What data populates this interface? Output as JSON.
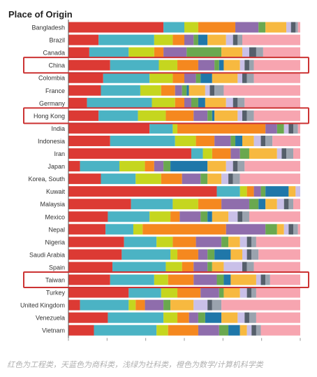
{
  "caption": "红色为工程类，天蓝色为商科类，浅绿为社科类，橙色为数学/计算机科学类",
  "colors": {
    "palette": [
      "#dc3a34",
      "#4bb3c4",
      "#c5d61f",
      "#f5881f",
      "#8f6dac",
      "#6aa84f",
      "#1f77a9",
      "#f7b940",
      "#c9c0e8",
      "#555f6b",
      "#9aa3ae",
      "#f7a5b0"
    ],
    "highlight": "#cc3333",
    "label": "#333333",
    "axis": "#555555"
  },
  "chart_data": {
    "type": "bar",
    "orientation": "horizontal",
    "stacked": true,
    "normalized": true,
    "title": "Place of Origin",
    "xlabel": "",
    "ylabel": "",
    "xlim": [
      0,
      1
    ],
    "grid": false,
    "legend": "none",
    "highlighted": [
      "China",
      "Hong Kong",
      "Taiwan"
    ],
    "categories": [
      "Bangladesh",
      "Brazil",
      "Canada",
      "China",
      "Colombia",
      "France",
      "Germany",
      "Hong Kong",
      "India",
      "Indonesia",
      "Iran",
      "Japan",
      "Korea, South",
      "Kuwait",
      "Malaysia",
      "Mexico",
      "Nepal",
      "Nigeria",
      "Saudi Arabia",
      "Spain",
      "Taiwan",
      "Turkey",
      "United Kingdom",
      "Venezuela",
      "Vietnam"
    ],
    "series": [
      {
        "values": [
          0.41,
          0.13,
          0.09,
          0.18,
          0.15,
          0.14,
          0.08,
          0.13,
          0.35,
          0.18,
          0.53,
          0.05,
          0.14,
          0.64,
          0.27,
          0.17,
          0.16,
          0.24,
          0.23,
          0.19,
          0.18,
          0.26,
          0.05,
          0.17,
          0.11
        ]
      },
      {
        "values": [
          0.09,
          0.24,
          0.17,
          0.21,
          0.2,
          0.17,
          0.28,
          0.17,
          0.1,
          0.28,
          0.05,
          0.17,
          0.15,
          0.1,
          0.18,
          0.18,
          0.12,
          0.14,
          0.21,
          0.23,
          0.19,
          0.14,
          0.21,
          0.24,
          0.27
        ]
      },
      {
        "values": [
          0.06,
          0.08,
          0.11,
          0.08,
          0.1,
          0.09,
          0.1,
          0.12,
          0.02,
          0.09,
          0.04,
          0.11,
          0.11,
          0.03,
          0.11,
          0.09,
          0.04,
          0.07,
          0.03,
          0.07,
          0.06,
          0.07,
          0.03,
          0.06,
          0.05
        ]
      },
      {
        "values": [
          0.16,
          0.05,
          0.04,
          0.09,
          0.05,
          0.06,
          0.04,
          0.12,
          0.38,
          0.08,
          0.08,
          0.04,
          0.09,
          0.03,
          0.1,
          0.04,
          0.36,
          0.1,
          0.09,
          0.05,
          0.11,
          0.1,
          0.04,
          0.05,
          0.13
        ]
      },
      {
        "values": [
          0.1,
          0.04,
          0.1,
          0.07,
          0.05,
          0.03,
          0.03,
          0.06,
          0.05,
          0.07,
          0.04,
          0.04,
          0.08,
          0.03,
          0.12,
          0.09,
          0.17,
          0.11,
          0.04,
          0.06,
          0.1,
          0.08,
          0.08,
          0.04,
          0.09
        ]
      },
      {
        "values": [
          0.03,
          0.02,
          0.15,
          0.02,
          0.02,
          0.02,
          0.03,
          0.02,
          0.03,
          0.02,
          0.04,
          0.03,
          0.03,
          0.02,
          0.04,
          0.03,
          0.05,
          0.03,
          0.03,
          0.02,
          0.03,
          0.02,
          0.03,
          0.03,
          0.04
        ]
      },
      {
        "values": [
          0.0,
          0.04,
          0.0,
          0.02,
          0.05,
          0.01,
          0.03,
          0.01,
          0.0,
          0.03,
          0.0,
          0.16,
          0.0,
          0.1,
          0.03,
          0.02,
          0.0,
          0.0,
          0.07,
          0.0,
          0.03,
          0.0,
          0.0,
          0.07,
          0.05
        ]
      },
      {
        "values": [
          0.09,
          0.08,
          0.09,
          0.07,
          0.11,
          0.07,
          0.09,
          0.1,
          0.0,
          0.05,
          0.12,
          0.08,
          0.06,
          0.03,
          0.05,
          0.07,
          0.03,
          0.05,
          0.05,
          0.05,
          0.11,
          0.07,
          0.1,
          0.07,
          0.03
        ]
      },
      {
        "values": [
          0.02,
          0.03,
          0.03,
          0.02,
          0.02,
          0.02,
          0.03,
          0.02,
          0.02,
          0.03,
          0.02,
          0.03,
          0.03,
          0.02,
          0.03,
          0.04,
          0.02,
          0.03,
          0.02,
          0.08,
          0.02,
          0.03,
          0.06,
          0.03,
          0.02
        ]
      },
      {
        "values": [
          0.02,
          0.02,
          0.03,
          0.02,
          0.02,
          0.02,
          0.02,
          0.02,
          0.02,
          0.02,
          0.02,
          0.02,
          0.02,
          0.02,
          0.02,
          0.02,
          0.02,
          0.02,
          0.02,
          0.02,
          0.02,
          0.02,
          0.02,
          0.02,
          0.02
        ]
      },
      {
        "values": [
          0.01,
          0.02,
          0.03,
          0.02,
          0.03,
          0.04,
          0.03,
          0.03,
          0.02,
          0.03,
          0.03,
          0.03,
          0.03,
          0.02,
          0.02,
          0.03,
          0.02,
          0.02,
          0.03,
          0.03,
          0.02,
          0.02,
          0.04,
          0.03,
          0.02
        ]
      },
      {
        "values": [
          0.05,
          0.25,
          0.16,
          0.2,
          0.2,
          0.33,
          0.24,
          0.2,
          0.01,
          0.12,
          0.03,
          0.24,
          0.26,
          0.0,
          0.03,
          0.22,
          0.01,
          0.19,
          0.18,
          0.2,
          0.13,
          0.19,
          0.34,
          0.19,
          0.17
        ]
      }
    ]
  }
}
